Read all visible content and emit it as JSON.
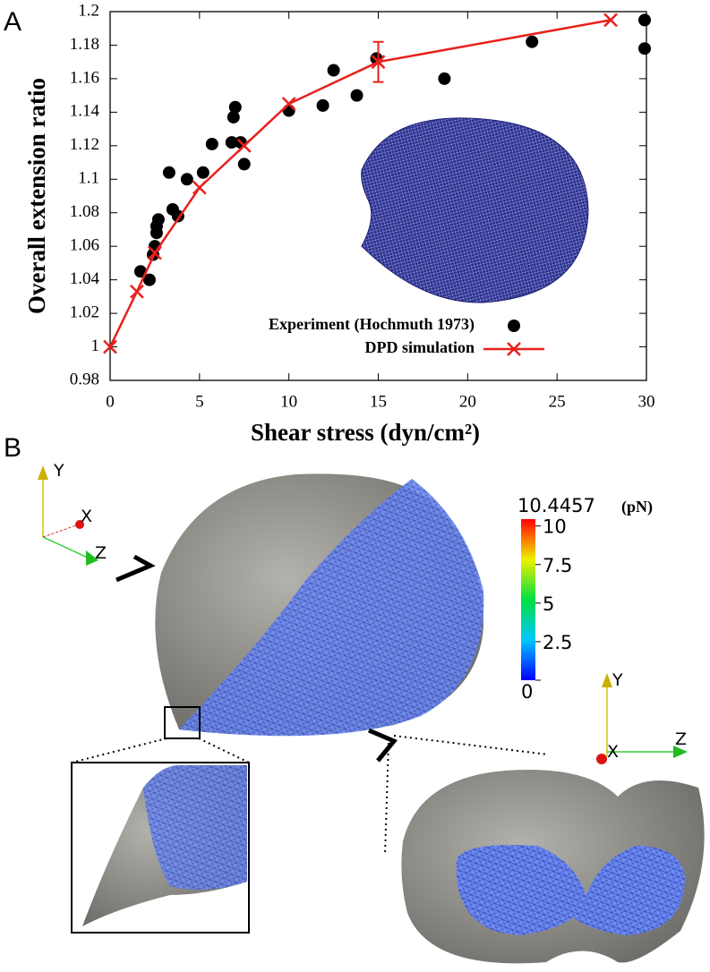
{
  "chart_data": {
    "type": "scatter",
    "panel_label": "A",
    "xlabel": "Shear stress (dyn/cm²)",
    "ylabel": "Overall extension ratio",
    "xlim": [
      0,
      30
    ],
    "xticks": [
      0,
      5,
      10,
      15,
      20,
      25,
      30
    ],
    "ylim": [
      0.98,
      1.2
    ],
    "yticks": [
      0.98,
      1,
      1.02,
      1.04,
      1.06,
      1.08,
      1.1,
      1.12,
      1.14,
      1.16,
      1.18,
      1.2
    ],
    "legend": "lower right",
    "series": [
      {
        "name": "Experiment (Hochmuth 1973)",
        "color": "#000000",
        "type": "scatter",
        "x": [
          1.7,
          2.2,
          2.4,
          2.5,
          2.6,
          2.6,
          2.7,
          3.3,
          3.5,
          3.8,
          4.3,
          5.2,
          5.7,
          6.8,
          6.9,
          7.0,
          7.3,
          7.5,
          10,
          11.9,
          12.5,
          13.8,
          14.9,
          18.7,
          23.6,
          29.9,
          29.9
        ],
        "values": [
          1.045,
          1.04,
          1.055,
          1.06,
          1.068,
          1.072,
          1.076,
          1.104,
          1.082,
          1.078,
          1.1,
          1.104,
          1.121,
          1.122,
          1.137,
          1.143,
          1.122,
          1.109,
          1.141,
          1.144,
          1.165,
          1.15,
          1.172,
          1.16,
          1.182,
          1.195,
          1.178
        ]
      },
      {
        "name": "DPD simulation",
        "color": "#e8201c",
        "type": "line",
        "x": [
          0,
          1.5,
          2.5,
          5,
          7.5,
          10,
          15,
          28
        ],
        "values": [
          1,
          1.033,
          1.056,
          1.095,
          1.12,
          1.145,
          1.17,
          1.195
        ],
        "errors": [
          null,
          null,
          null,
          null,
          null,
          null,
          0.012,
          null
        ]
      }
    ]
  },
  "panel_b": {
    "label": "B",
    "triad_left": {
      "y": "Y",
      "x": "X",
      "z": "Z"
    },
    "triad_right": {
      "y": "Y",
      "x": "X",
      "z": "Z"
    },
    "colorbar": {
      "lim": [
        0,
        10.4457
      ],
      "unit": "(pN)",
      "ticks": [
        10,
        7.5,
        5,
        2.5,
        0
      ]
    }
  }
}
